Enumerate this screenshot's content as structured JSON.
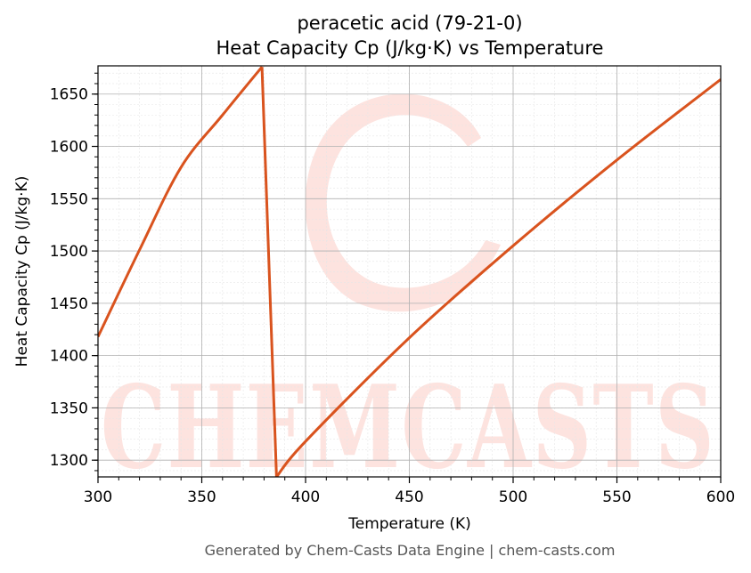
{
  "chart_data": {
    "type": "line",
    "title": "peracetic acid (79-21-0)",
    "subtitle": "Heat Capacity Cp (J/kg·K) vs Temperature",
    "xlabel": "Temperature (K)",
    "ylabel": "Heat Capacity Cp (J/kg·K)",
    "xlim": [
      300,
      600
    ],
    "ylim": [
      1284,
      1677
    ],
    "x_ticks": [
      300,
      350,
      400,
      450,
      500,
      550,
      600
    ],
    "y_ticks": [
      1300,
      1350,
      1400,
      1450,
      1500,
      1550,
      1600,
      1650
    ],
    "grid": true,
    "line_color": "#d9531e",
    "series": [
      {
        "segments": [
          {
            "x": [
              300,
              320,
              340,
              360,
              379
            ],
            "y": [
              1418,
              1501,
              1580,
              1630,
              1676
            ]
          },
          {
            "x": [
              379,
              386
            ],
            "y": [
              1676,
              1284
            ]
          },
          {
            "x": [
              386,
              400,
              450,
              500,
              550,
              600
            ],
            "y": [
              1284,
              1318,
              1417,
              1505,
              1587,
              1664
            ]
          }
        ]
      }
    ]
  },
  "watermark": {
    "text": "CHEMCASTS",
    "color": "#fde3df"
  },
  "footer": "Generated by Chem-Casts Data Engine | chem-casts.com"
}
